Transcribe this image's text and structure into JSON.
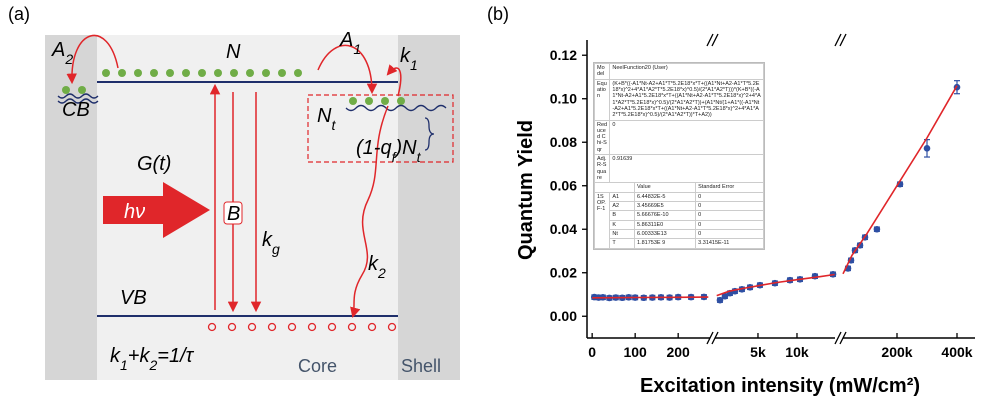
{
  "panel_a": {
    "label": "(a)",
    "A2": [
      "A",
      "2"
    ],
    "N": "N",
    "A1": [
      "A",
      "1"
    ],
    "k1": [
      "k",
      "1"
    ],
    "CB": "CB",
    "Nt": [
      "N",
      "t"
    ],
    "trap_fraction": [
      "(1-q",
      "f",
      ")N",
      "t"
    ],
    "Gt": "G(t)",
    "B": "B",
    "hv": "hν",
    "kg": [
      "k",
      "g"
    ],
    "k2": [
      "k",
      "2"
    ],
    "VB": "VB",
    "lifetime": [
      "k",
      "1",
      "+k",
      "2",
      "=1/τ"
    ],
    "core": "Core",
    "shell": "Shell"
  },
  "chart_data": {
    "type": "scatter",
    "panel_label": "(b)",
    "x_label": "Excitation intensity (mW/cm²)",
    "y_label": "Quantum Yield",
    "ylim": [
      -0.01,
      0.127
    ],
    "yticks": [
      {
        "value": 0,
        "label": "0.00"
      },
      {
        "value": 0.02,
        "label": "0.02"
      },
      {
        "value": 0.04,
        "label": "0.04"
      },
      {
        "value": 0.06,
        "label": "0.06"
      },
      {
        "value": 0.08,
        "label": "0.08"
      },
      {
        "value": 0.1,
        "label": "0.10"
      },
      {
        "value": 0.12,
        "label": "0.12"
      }
    ],
    "x_segments": [
      {
        "xlim": [
          -12,
          274
        ],
        "log": false,
        "xticks": [
          0,
          100,
          200
        ]
      },
      {
        "xlim": [
          2330,
          19650
        ],
        "log": true,
        "xticks": [
          {
            "value": 5000,
            "label": "5k"
          },
          {
            "value": 10000,
            "label": "10k"
          }
        ]
      },
      {
        "xlim": [
          20000,
          460000
        ],
        "log": false,
        "xticks": [
          {
            "value": 200000,
            "label": "200k"
          },
          {
            "value": 400000,
            "label": "400k"
          }
        ]
      }
    ],
    "series": [
      {
        "type": "scatter",
        "color": "#2e4fa3",
        "x": [
          5,
          15,
          25,
          40,
          55,
          70,
          85,
          100,
          120,
          140,
          160,
          180,
          200,
          230,
          260,
          2545,
          2780,
          3040,
          3320,
          3760,
          4340,
          5180,
          6760,
          8830,
          10550,
          13770,
          18970,
          36700,
          46700,
          60000,
          76700,
          93300,
          133000,
          210000,
          300000,
          400000
        ],
        "values": [
          0.0088,
          0.0086,
          0.0087,
          0.0084,
          0.0086,
          0.0085,
          0.0087,
          0.0086,
          0.0085,
          0.0086,
          0.0087,
          0.0086,
          0.0088,
          0.0088,
          0.0089,
          0.0074,
          0.0092,
          0.0106,
          0.0115,
          0.0124,
          0.0133,
          0.0143,
          0.0152,
          0.0166,
          0.017,
          0.0184,
          0.0193,
          0.022,
          0.0257,
          0.0303,
          0.0326,
          0.0363,
          0.04,
          0.0607,
          0.0772,
          0.1053
        ],
        "errors": [
          0.001,
          0.001,
          0.001,
          0.001,
          0.001,
          0.001,
          0.001,
          0.001,
          0.001,
          0.001,
          0.001,
          0.001,
          0.001,
          0.001,
          0.001,
          0.001,
          0.001,
          0.001,
          0.001,
          0.001,
          0.001,
          0.001,
          0.001,
          0.001,
          0.001,
          0.001,
          0.001,
          0.001,
          0.001,
          0.001,
          0.001,
          0.001,
          0.001,
          0.001,
          0.004,
          0.003
        ]
      },
      {
        "type": "line",
        "color": "#e0262a",
        "x": [
          0,
          100,
          200,
          270,
          null,
          2400,
          3000,
          4000,
          5000,
          7000,
          10000,
          15000,
          19500,
          null,
          20000,
          50000,
          100000,
          200000,
          300000,
          400000
        ],
        "values": [
          0.0085,
          0.0086,
          0.0087,
          0.0088,
          null,
          0.0095,
          0.0115,
          0.013,
          0.014,
          0.0155,
          0.0168,
          0.0182,
          0.0192,
          null,
          0.0195,
          0.028,
          0.038,
          0.06,
          0.082,
          0.106
        ]
      }
    ]
  },
  "inset": {
    "model_label": "Model",
    "model": "NeelFunction20 (User)",
    "equation_label": "Equation",
    "equation": "(K+B*((-A1*Nt-A2+A1*T*5.2E18*x*T+((A1*Nt+A2-A1*T*5.2E18*x)^2+4*A1*A2*T*5.2E18*x)^0.5)/(2*A1*A2*T)))*(K+B*((-A1*Nt-A2+A1*5.2E18*x*T+((A1*Nt+A2-A1*T*5.2E18*x)^2+4*A1*A2*T*5.2E18*x)^0.5)/(2*A1*A2*T))+(A1*Nt/(1+A1*((-A1*Nt-A2+A1*5.2E18*x*T+((A1*Nt+A2-A1*T*5.2E18*x)^2+4*A1*A2*T*5.2E18*x)^0.5)/(2*A1*A2*T))*T+A2))",
    "chi_label": "Reduced Chi-Sqr",
    "chi": "0",
    "r2_label": "Adj. R-Square",
    "r2": "0.91639",
    "headers": [
      "Value",
      "Standard Error"
    ],
    "group": "1SOP.F-1",
    "params": [
      {
        "name": "A1",
        "value": "6.44832E-5",
        "error": "0"
      },
      {
        "name": "A2",
        "value": "3.45669E5",
        "error": "0"
      },
      {
        "name": "B",
        "value": "5.66676E-10",
        "error": "0"
      },
      {
        "name": "K",
        "value": "5.86311E0",
        "error": "0"
      },
      {
        "name": "Nt",
        "value": "6.00333E13",
        "error": "0"
      },
      {
        "name": "T",
        "value": "1.81753E 9",
        "error": "3.31415E-11"
      }
    ]
  }
}
